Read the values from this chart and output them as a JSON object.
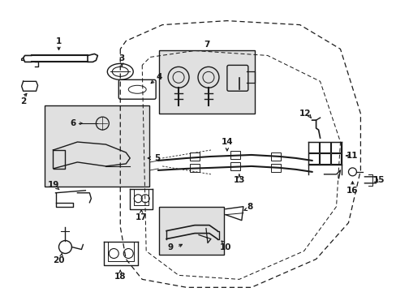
{
  "bg_color": "#ffffff",
  "line_color": "#1a1a1a",
  "box_fill": "#e0e0e0",
  "fig_w": 4.89,
  "fig_h": 3.6,
  "dpi": 100
}
